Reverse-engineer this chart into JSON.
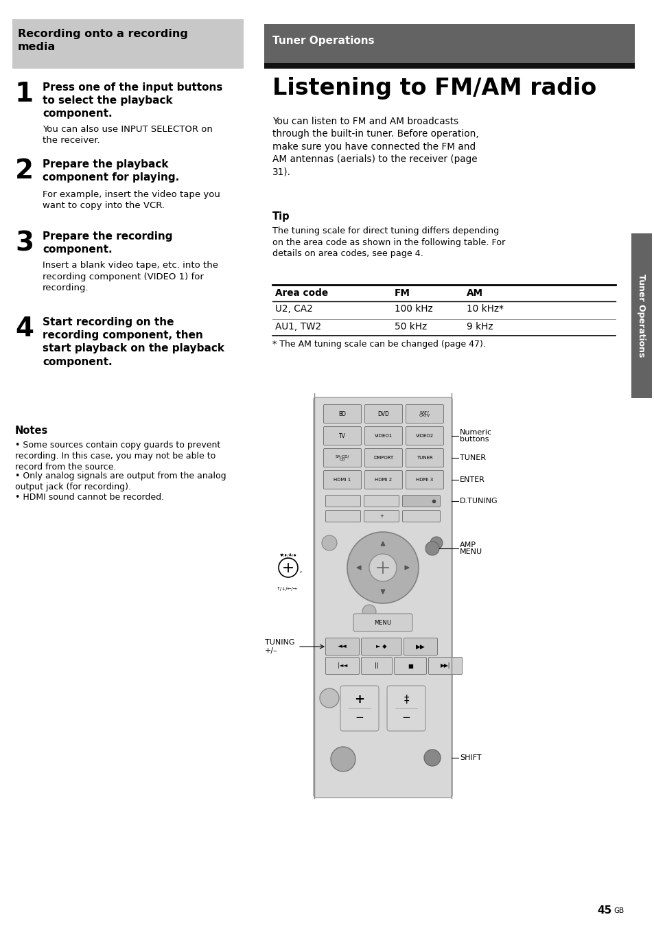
{
  "page_bg": "#ffffff",
  "left_header_bg": "#c8c8c8",
  "left_header_text": "Recording onto a recording\nmedia",
  "right_header_bg": "#636363",
  "right_header_text": "Tuner Operations",
  "right_title": "Listening to FM/AM radio",
  "right_intro": "You can listen to FM and AM broadcasts\nthrough the built-in tuner. Before operation,\nmake sure you have connected the FM and\nAM antennas (aerials) to the receiver (page\n31).",
  "tip_title": "Tip",
  "tip_text": "The tuning scale for direct tuning differs depending\non the area code as shown in the following table. For\ndetails on area codes, see page 4.",
  "table_headers": [
    "Area code",
    "FM",
    "AM"
  ],
  "table_row1": [
    "U2, CA2",
    "100 kHz",
    "10 kHz*"
  ],
  "table_row2": [
    "AU1, TW2",
    "50 kHz",
    "9 kHz"
  ],
  "table_footnote": "* The AM tuning scale can be changed (page 47).",
  "step1_num": "1",
  "step1_title": "Press one of the input buttons\nto select the playback\ncomponent.",
  "step1_body": "You can also use INPUT SELECTOR on\nthe receiver.",
  "step2_num": "2",
  "step2_title": "Prepare the playback\ncomponent for playing.",
  "step2_body": "For example, insert the video tape you\nwant to copy into the VCR.",
  "step3_num": "3",
  "step3_title": "Prepare the recording\ncomponent.",
  "step3_body": "Insert a blank video tape, etc. into the\nrecording component (VIDEO 1) for\nrecording.",
  "step4_num": "4",
  "step4_title": "Start recording on the\nrecording component, then\nstart playback on the playback\ncomponent.",
  "notes_title": "Notes",
  "notes_bullets": [
    "Some sources contain copy guards to prevent\nrecording. In this case, you may not be able to\nrecord from the source.",
    "Only analog signals are output from the analog\noutput jack (for recording).",
    "HDMI sound cannot be recorded."
  ],
  "sidebar_text": "Tuner Operations",
  "page_number": "45",
  "page_suffix": "GB"
}
